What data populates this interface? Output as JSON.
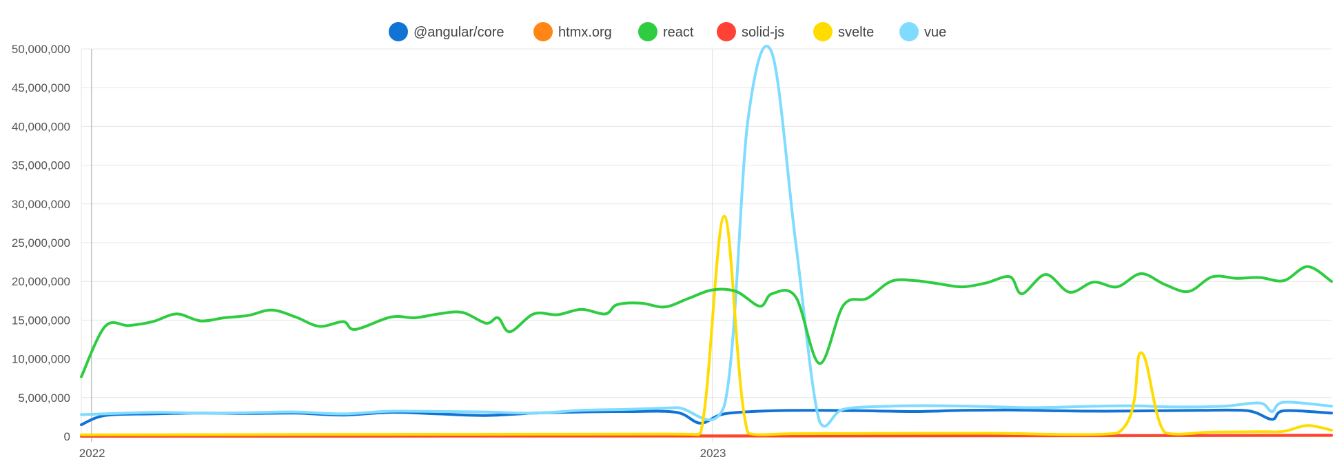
{
  "chart_data": {
    "type": "line",
    "legend_position": "top",
    "grid": true,
    "ylim": [
      0,
      50000000
    ],
    "xlim": [
      "2021-12-26",
      "2023-12-31"
    ],
    "y_ticks": [
      {
        "value": 0,
        "label": "0"
      },
      {
        "value": 5000000,
        "label": "5,000,000"
      },
      {
        "value": 10000000,
        "label": "10,000,000"
      },
      {
        "value": 15000000,
        "label": "15,000,000"
      },
      {
        "value": 20000000,
        "label": "20,000,000"
      },
      {
        "value": 25000000,
        "label": "25,000,000"
      },
      {
        "value": 30000000,
        "label": "30,000,000"
      },
      {
        "value": 35000000,
        "label": "35,000,000"
      },
      {
        "value": 40000000,
        "label": "40,000,000"
      },
      {
        "value": 45000000,
        "label": "45,000,000"
      },
      {
        "value": 50000000,
        "label": "50,000,000"
      }
    ],
    "x_ticks": [
      {
        "value": "2022-01-01",
        "label": "2022"
      },
      {
        "value": "2023-01-01",
        "label": "2023"
      }
    ],
    "series": [
      {
        "name": "@angular/core",
        "color": "#1173d4",
        "points": [
          [
            "2021-12-26",
            1500000
          ],
          [
            "2022-01-09",
            2700000
          ],
          [
            "2022-02-06",
            2900000
          ],
          [
            "2022-03-06",
            3000000
          ],
          [
            "2022-04-03",
            2950000
          ],
          [
            "2022-05-01",
            3000000
          ],
          [
            "2022-05-29",
            2750000
          ],
          [
            "2022-06-26",
            3100000
          ],
          [
            "2022-07-24",
            2900000
          ],
          [
            "2022-08-21",
            2700000
          ],
          [
            "2022-09-18",
            3000000
          ],
          [
            "2022-10-16",
            3150000
          ],
          [
            "2022-11-13",
            3200000
          ],
          [
            "2022-12-11",
            3100000
          ],
          [
            "2022-12-25",
            1700000
          ],
          [
            "2023-01-08",
            2900000
          ],
          [
            "2023-02-05",
            3300000
          ],
          [
            "2023-03-05",
            3350000
          ],
          [
            "2023-04-02",
            3300000
          ],
          [
            "2023-04-30",
            3200000
          ],
          [
            "2023-05-28",
            3350000
          ],
          [
            "2023-06-25",
            3400000
          ],
          [
            "2023-07-23",
            3300000
          ],
          [
            "2023-08-20",
            3250000
          ],
          [
            "2023-09-17",
            3300000
          ],
          [
            "2023-10-15",
            3350000
          ],
          [
            "2023-11-12",
            3300000
          ],
          [
            "2023-11-26",
            2200000
          ],
          [
            "2023-12-03",
            3300000
          ],
          [
            "2023-12-31",
            3000000
          ]
        ]
      },
      {
        "name": "htmx.org",
        "color": "#ff8515",
        "points": [
          [
            "2021-12-26",
            10000
          ],
          [
            "2022-06-26",
            15000
          ],
          [
            "2022-12-25",
            25000
          ],
          [
            "2023-06-25",
            60000
          ],
          [
            "2023-12-31",
            120000
          ]
        ]
      },
      {
        "name": "react",
        "color": "#2ecc40",
        "points": [
          [
            "2021-12-26",
            7700000
          ],
          [
            "2022-01-09",
            14200000
          ],
          [
            "2022-01-23",
            14300000
          ],
          [
            "2022-02-06",
            14800000
          ],
          [
            "2022-02-20",
            15800000
          ],
          [
            "2022-03-06",
            14900000
          ],
          [
            "2022-03-20",
            15300000
          ],
          [
            "2022-04-03",
            15600000
          ],
          [
            "2022-04-17",
            16300000
          ],
          [
            "2022-05-01",
            15400000
          ],
          [
            "2022-05-15",
            14200000
          ],
          [
            "2022-05-29",
            14800000
          ],
          [
            "2022-06-05",
            13800000
          ],
          [
            "2022-06-26",
            15400000
          ],
          [
            "2022-07-10",
            15300000
          ],
          [
            "2022-07-24",
            15800000
          ],
          [
            "2022-08-07",
            16000000
          ],
          [
            "2022-08-21",
            14600000
          ],
          [
            "2022-08-28",
            15300000
          ],
          [
            "2022-09-04",
            13500000
          ],
          [
            "2022-09-18",
            15800000
          ],
          [
            "2022-10-02",
            15700000
          ],
          [
            "2022-10-16",
            16400000
          ],
          [
            "2022-10-30",
            15800000
          ],
          [
            "2022-11-06",
            17000000
          ],
          [
            "2022-11-20",
            17200000
          ],
          [
            "2022-12-04",
            16700000
          ],
          [
            "2022-12-18",
            17800000
          ],
          [
            "2023-01-01",
            18900000
          ],
          [
            "2023-01-15",
            18700000
          ],
          [
            "2023-01-29",
            16800000
          ],
          [
            "2023-02-05",
            18400000
          ],
          [
            "2023-02-19",
            18000000
          ],
          [
            "2023-03-05",
            9400000
          ],
          [
            "2023-03-19",
            16900000
          ],
          [
            "2023-04-02",
            17800000
          ],
          [
            "2023-04-16",
            20000000
          ],
          [
            "2023-04-30",
            20100000
          ],
          [
            "2023-05-14",
            19700000
          ],
          [
            "2023-05-28",
            19300000
          ],
          [
            "2023-06-11",
            19800000
          ],
          [
            "2023-06-25",
            20600000
          ],
          [
            "2023-07-02",
            18400000
          ],
          [
            "2023-07-16",
            20900000
          ],
          [
            "2023-07-30",
            18600000
          ],
          [
            "2023-08-13",
            19900000
          ],
          [
            "2023-08-27",
            19300000
          ],
          [
            "2023-09-10",
            21000000
          ],
          [
            "2023-09-24",
            19600000
          ],
          [
            "2023-10-08",
            18700000
          ],
          [
            "2023-10-22",
            20600000
          ],
          [
            "2023-11-05",
            20400000
          ],
          [
            "2023-11-19",
            20500000
          ],
          [
            "2023-12-03",
            20100000
          ],
          [
            "2023-12-17",
            21900000
          ],
          [
            "2023-12-31",
            20000000
          ]
        ]
      },
      {
        "name": "solid-js",
        "color": "#ff4136",
        "points": [
          [
            "2021-12-26",
            30000
          ],
          [
            "2022-06-26",
            40000
          ],
          [
            "2022-12-25",
            60000
          ],
          [
            "2023-06-25",
            90000
          ],
          [
            "2023-12-31",
            140000
          ]
        ]
      },
      {
        "name": "svelte",
        "color": "#ffdc00",
        "points": [
          [
            "2021-12-26",
            200000
          ],
          [
            "2022-06-26",
            260000
          ],
          [
            "2022-12-04",
            300000
          ],
          [
            "2022-12-25",
            400000
          ],
          [
            "2023-01-08",
            28400000
          ],
          [
            "2023-01-22",
            400000
          ],
          [
            "2023-02-19",
            350000
          ],
          [
            "2023-04-16",
            380000
          ],
          [
            "2023-06-11",
            400000
          ],
          [
            "2023-08-27",
            420000
          ],
          [
            "2023-09-10",
            10800000
          ],
          [
            "2023-09-24",
            500000
          ],
          [
            "2023-10-22",
            550000
          ],
          [
            "2023-11-19",
            600000
          ],
          [
            "2023-12-03",
            650000
          ],
          [
            "2023-12-17",
            1400000
          ],
          [
            "2023-12-31",
            800000
          ]
        ]
      },
      {
        "name": "vue",
        "color": "#7fdbff",
        "points": [
          [
            "2021-12-26",
            2800000
          ],
          [
            "2022-02-06",
            3100000
          ],
          [
            "2022-03-06",
            3000000
          ],
          [
            "2022-04-03",
            3050000
          ],
          [
            "2022-05-01",
            3150000
          ],
          [
            "2022-05-29",
            2900000
          ],
          [
            "2022-06-26",
            3250000
          ],
          [
            "2022-07-24",
            3200000
          ],
          [
            "2022-08-21",
            3150000
          ],
          [
            "2022-09-18",
            3000000
          ],
          [
            "2022-10-16",
            3350000
          ],
          [
            "2022-11-13",
            3500000
          ],
          [
            "2022-12-11",
            3700000
          ],
          [
            "2023-01-08",
            3900000
          ],
          [
            "2023-01-22",
            41000000
          ],
          [
            "2023-02-05",
            49500000
          ],
          [
            "2023-02-19",
            25000000
          ],
          [
            "2023-03-05",
            1900000
          ],
          [
            "2023-03-19",
            3500000
          ],
          [
            "2023-04-16",
            3900000
          ],
          [
            "2023-05-14",
            3950000
          ],
          [
            "2023-06-11",
            3850000
          ],
          [
            "2023-07-09",
            3700000
          ],
          [
            "2023-08-06",
            3850000
          ],
          [
            "2023-09-03",
            3950000
          ],
          [
            "2023-10-01",
            3800000
          ],
          [
            "2023-10-29",
            3900000
          ],
          [
            "2023-11-19",
            4300000
          ],
          [
            "2023-11-26",
            3200000
          ],
          [
            "2023-12-03",
            4400000
          ],
          [
            "2023-12-31",
            3900000
          ]
        ]
      }
    ]
  }
}
